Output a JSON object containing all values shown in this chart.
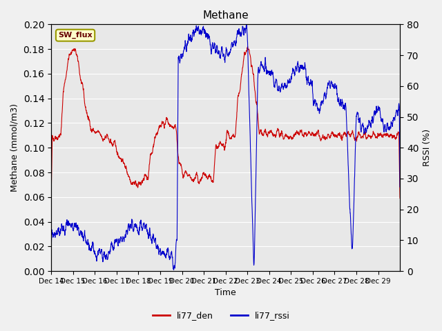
{
  "title": "Methane",
  "ylabel_left": "Methane (mmol/m3)",
  "ylabel_right": "RSSI (%)",
  "xlabel": "Time",
  "ylim_left": [
    0.0,
    0.2
  ],
  "ylim_right": [
    0,
    80
  ],
  "yticks_left": [
    0.0,
    0.02,
    0.04,
    0.06,
    0.08,
    0.1,
    0.12,
    0.14,
    0.16,
    0.18,
    0.2
  ],
  "yticks_right": [
    0,
    10,
    20,
    30,
    40,
    50,
    60,
    70,
    80
  ],
  "color_den": "#cc0000",
  "color_rssi": "#0000cc",
  "bg_color": "#e8e8e8",
  "legend_label_den": "li77_den",
  "legend_label_rssi": "li77_rssi",
  "box_label": "SW_flux",
  "box_facecolor": "#ffffcc",
  "box_edgecolor": "#999900",
  "xtick_labels": [
    "Dec 14",
    "Dec 15",
    "Dec 16",
    "Dec 17",
    "Dec 18",
    "Dec 19",
    "Dec 20",
    "Dec 21",
    "Dec 22",
    "Dec 23",
    "Dec 24",
    "Dec 25",
    "Dec 26",
    "Dec 27",
    "Dec 28",
    "Dec 29"
  ]
}
